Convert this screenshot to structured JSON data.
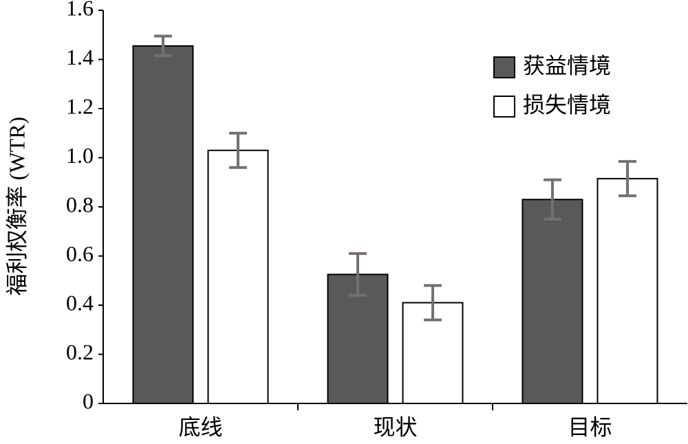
{
  "chart_data": {
    "type": "bar",
    "y_label": "福利权衡率 (WTR)",
    "categories": [
      "底线",
      "现状",
      "目标"
    ],
    "series": [
      {
        "name": "获益情境",
        "color": "#595959",
        "values": [
          1.455,
          0.525,
          0.83
        ],
        "errors": [
          0.04,
          0.085,
          0.08
        ]
      },
      {
        "name": "损失情境",
        "color": "#ffffff",
        "values": [
          1.03,
          0.41,
          0.915
        ],
        "errors": [
          0.07,
          0.07,
          0.07
        ]
      }
    ],
    "error_color": "#757070",
    "ylim": [
      0,
      1.6
    ],
    "yticks": [
      0,
      0.2,
      0.4,
      0.6,
      0.8,
      {
        "value": 1,
        "label": "1.0"
      },
      1.2,
      1.4,
      1.6
    ],
    "grid": false,
    "legend": "upper right"
  }
}
